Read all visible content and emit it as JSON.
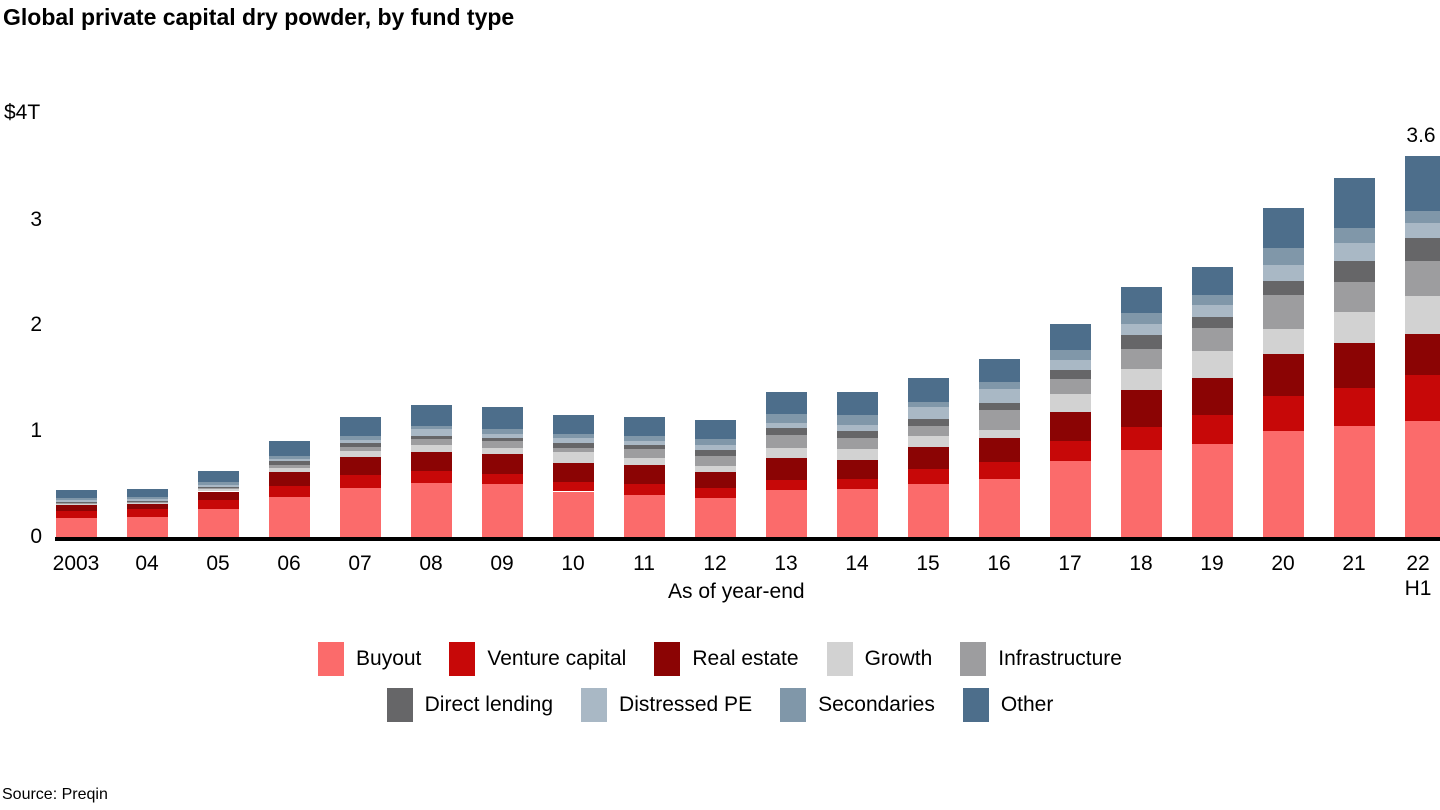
{
  "chart_data": {
    "type": "bar",
    "stacked": true,
    "title": "Global private capital dry powder, by fund type",
    "xlabel": "As of year-end",
    "ylabel": "$T",
    "ylim": [
      0,
      4
    ],
    "grid": false,
    "legend_position": "bottom",
    "source": "Source: Preqin",
    "y_axis": {
      "ticks": [
        {
          "value": 4,
          "label": "$4T"
        },
        {
          "value": 3,
          "label": "3"
        },
        {
          "value": 2,
          "label": "2"
        },
        {
          "value": 1,
          "label": "1"
        },
        {
          "value": 0,
          "label": "0"
        }
      ]
    },
    "categories": [
      "2003",
      "04",
      "05",
      "06",
      "07",
      "08",
      "09",
      "10",
      "11",
      "12",
      "13",
      "14",
      "15",
      "16",
      "17",
      "18",
      "19",
      "20",
      "21",
      "22\nH1"
    ],
    "series": [
      {
        "name": "Buyout",
        "color": "#FB6B6B",
        "values": [
          0.18,
          0.19,
          0.26,
          0.38,
          0.46,
          0.51,
          0.5,
          0.43,
          0.4,
          0.37,
          0.44,
          0.45,
          0.5,
          0.545,
          0.72,
          0.82,
          0.875,
          1.0,
          1.05,
          1.1
        ]
      },
      {
        "name": "Venture capital",
        "color": "#C70808",
        "values": [
          0.07,
          0.07,
          0.09,
          0.1,
          0.13,
          0.11,
          0.1,
          0.09,
          0.1,
          0.095,
          0.095,
          0.1,
          0.14,
          0.165,
          0.19,
          0.22,
          0.275,
          0.33,
          0.36,
          0.43
        ]
      },
      {
        "name": "Real estate",
        "color": "#8B0404",
        "values": [
          0.05,
          0.05,
          0.08,
          0.13,
          0.17,
          0.18,
          0.18,
          0.18,
          0.18,
          0.145,
          0.21,
          0.175,
          0.215,
          0.225,
          0.275,
          0.345,
          0.355,
          0.395,
          0.42,
          0.39
        ]
      },
      {
        "name": "Growth",
        "color": "#D2D2D2",
        "values": [
          0.015,
          0.015,
          0.02,
          0.04,
          0.05,
          0.07,
          0.06,
          0.1,
          0.07,
          0.065,
          0.095,
          0.11,
          0.095,
          0.08,
          0.165,
          0.2,
          0.25,
          0.24,
          0.3,
          0.36
        ]
      },
      {
        "name": "Infrastructure",
        "color": "#9D9D9F",
        "values": [
          0.01,
          0.01,
          0.015,
          0.03,
          0.04,
          0.06,
          0.07,
          0.04,
          0.085,
          0.095,
          0.12,
          0.1,
          0.095,
          0.19,
          0.145,
          0.19,
          0.225,
          0.325,
          0.28,
          0.33
        ]
      },
      {
        "name": "Direct lending",
        "color": "#666668",
        "values": [
          0.005,
          0.005,
          0.01,
          0.035,
          0.035,
          0.025,
          0.025,
          0.05,
          0.03,
          0.055,
          0.07,
          0.065,
          0.07,
          0.065,
          0.085,
          0.135,
          0.1,
          0.125,
          0.2,
          0.22
        ]
      },
      {
        "name": "Distressed PE",
        "color": "#A9B8C5",
        "values": [
          0.015,
          0.015,
          0.02,
          0.02,
          0.03,
          0.07,
          0.04,
          0.045,
          0.04,
          0.045,
          0.05,
          0.06,
          0.11,
          0.125,
          0.095,
          0.105,
          0.115,
          0.16,
          0.17,
          0.14
        ]
      },
      {
        "name": "Secondaries",
        "color": "#8097A9",
        "values": [
          0.02,
          0.02,
          0.025,
          0.03,
          0.035,
          0.02,
          0.045,
          0.04,
          0.045,
          0.055,
          0.085,
          0.09,
          0.055,
          0.07,
          0.095,
          0.105,
          0.095,
          0.155,
          0.14,
          0.11
        ]
      },
      {
        "name": "Other",
        "color": "#4D6E8B",
        "values": [
          0.075,
          0.075,
          0.1,
          0.14,
          0.18,
          0.2,
          0.21,
          0.18,
          0.18,
          0.18,
          0.21,
          0.225,
          0.22,
          0.215,
          0.245,
          0.24,
          0.265,
          0.375,
          0.47,
          0.52
        ]
      }
    ],
    "legend_rows": [
      [
        0,
        1,
        2,
        3,
        4
      ],
      [
        5,
        6,
        7,
        8
      ]
    ],
    "annotations": [
      {
        "category": "22\nH1",
        "text": "3.6"
      }
    ]
  }
}
